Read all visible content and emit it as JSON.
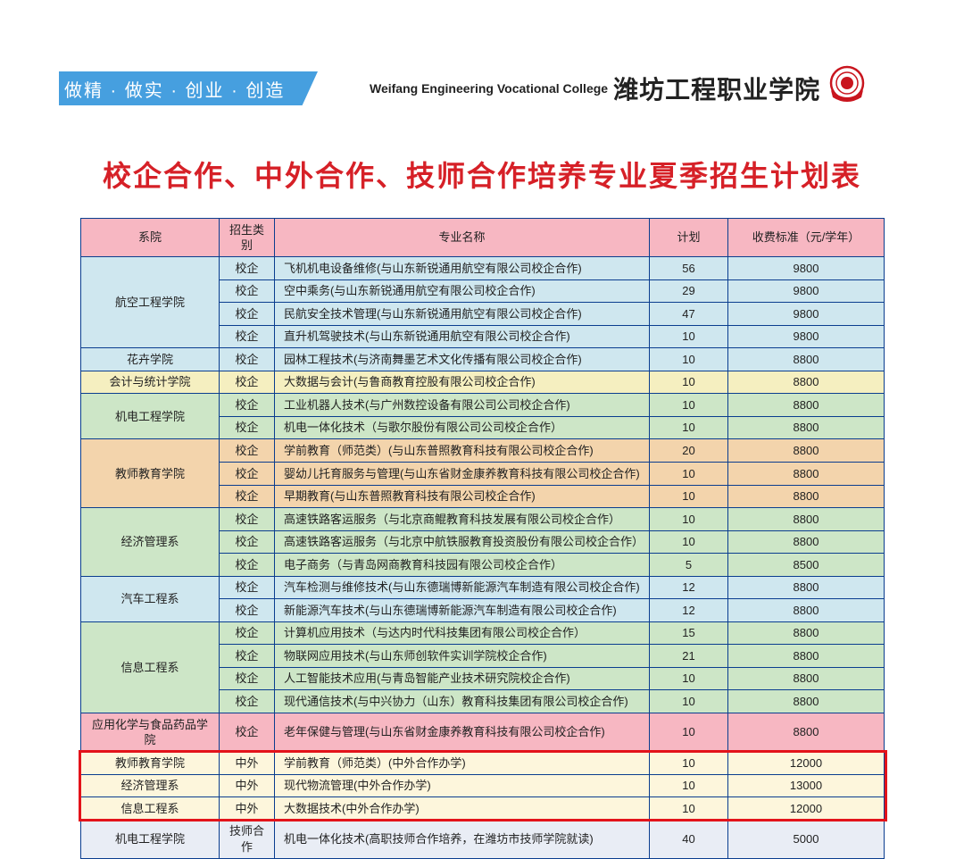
{
  "header": {
    "slogan": "做精 · 做实 · 创业 · 创造",
    "college_en": "Weifang Engineering Vocational College",
    "college_cn": "潍坊工程职业学院"
  },
  "title": "校企合作、中外合作、技师合作培养专业夏季招生计划表",
  "colors": {
    "slogan_bg": "#469fdf",
    "title": "#d62027",
    "border": "#0a3d8f",
    "header_row_bg": "#f7b7c2",
    "highlight_border": "#e3131a"
  },
  "dept_colors": {
    "航空工程学院": "#cfe7ef",
    "花卉学院": "#cfe7ef",
    "会计与统计学院": "#f5efc0",
    "机电工程学院": "#cde6c7",
    "教师教育学院": "#f3d4ac",
    "经济管理系": "#cde6c7",
    "汽车工程系": "#cfe7ef",
    "信息工程系": "#cde6c7",
    "应用化学与食品药品学院": "#f7b7c2",
    "教师教育学院2": "#fdf6dc",
    "经济管理系2": "#fdf6dc",
    "信息工程系2": "#fdf6dc",
    "机电工程学院2": "#e9edf5"
  },
  "columns": [
    "系院",
    "招生类别",
    "专业名称",
    "计划",
    "收费标准（元/学年）"
  ],
  "rows": [
    {
      "dept": "航空工程学院",
      "dept_rowspan": 4,
      "type": "校企",
      "major": "飞机机电设备维修(与山东新锐通用航空有限公司校企合作)",
      "plan": 56,
      "fee": 9800,
      "bg": "#cfe7ef"
    },
    {
      "type": "校企",
      "major": "空中乘务(与山东新锐通用航空有限公司校企合作)",
      "plan": 29,
      "fee": 9800,
      "bg": "#cfe7ef"
    },
    {
      "type": "校企",
      "major": "民航安全技术管理(与山东新锐通用航空有限公司校企合作)",
      "plan": 47,
      "fee": 9800,
      "bg": "#cfe7ef"
    },
    {
      "type": "校企",
      "major": "直升机驾驶技术(与山东新锐通用航空有限公司校企合作)",
      "plan": 10,
      "fee": 9800,
      "bg": "#cfe7ef"
    },
    {
      "dept": "花卉学院",
      "dept_rowspan": 1,
      "type": "校企",
      "major": "园林工程技术(与济南舞墨艺术文化传播有限公司校企合作)",
      "plan": 10,
      "fee": 8800,
      "bg": "#cfe7ef"
    },
    {
      "dept": "会计与统计学院",
      "dept_rowspan": 1,
      "type": "校企",
      "major": "大数据与会计(与鲁商教育控股有限公司校企合作)",
      "plan": 10,
      "fee": 8800,
      "bg": "#f5efc0"
    },
    {
      "dept": "机电工程学院",
      "dept_rowspan": 2,
      "type": "校企",
      "major": "工业机器人技术(与广州数控设备有限公司公司校企合作)",
      "plan": 10,
      "fee": 8800,
      "bg": "#cde6c7"
    },
    {
      "type": "校企",
      "major": "机电一体化技术（与歌尔股份有限公司公司校企合作）",
      "plan": 10,
      "fee": 8800,
      "bg": "#cde6c7"
    },
    {
      "dept": "教师教育学院",
      "dept_rowspan": 3,
      "type": "校企",
      "major": "学前教育（师范类）(与山东普照教育科技有限公司校企合作)",
      "plan": 20,
      "fee": 8800,
      "bg": "#f3d4ac"
    },
    {
      "type": "校企",
      "major": "婴幼儿托育服务与管理(与山东省财金康养教育科技有限公司校企合作)",
      "plan": 10,
      "fee": 8800,
      "bg": "#f3d4ac"
    },
    {
      "type": "校企",
      "major": "早期教育(与山东普照教育科技有限公司校企合作)",
      "plan": 10,
      "fee": 8800,
      "bg": "#f3d4ac"
    },
    {
      "dept": "经济管理系",
      "dept_rowspan": 3,
      "type": "校企",
      "major": "高速铁路客运服务（与北京商鲲教育科技发展有限公司校企合作）",
      "plan": 10,
      "fee": 8800,
      "bg": "#cde6c7"
    },
    {
      "type": "校企",
      "major": "高速铁路客运服务（与北京中航铁服教育投资股份有限公司校企合作）",
      "plan": 10,
      "fee": 8800,
      "bg": "#cde6c7"
    },
    {
      "type": "校企",
      "major": "电子商务（与青岛网商教育科技园有限公司校企合作）",
      "plan": 5,
      "fee": 8500,
      "bg": "#cde6c7"
    },
    {
      "dept": "汽车工程系",
      "dept_rowspan": 2,
      "type": "校企",
      "major": "汽车检测与维修技术(与山东德瑞博新能源汽车制造有限公司校企合作)",
      "plan": 12,
      "fee": 8800,
      "bg": "#cfe7ef"
    },
    {
      "type": "校企",
      "major": "新能源汽车技术(与山东德瑞博新能源汽车制造有限公司校企合作)",
      "plan": 12,
      "fee": 8800,
      "bg": "#cfe7ef"
    },
    {
      "dept": "信息工程系",
      "dept_rowspan": 4,
      "type": "校企",
      "major": "计算机应用技术（与达内时代科技集团有限公司校企合作）",
      "plan": 15,
      "fee": 8800,
      "bg": "#cde6c7"
    },
    {
      "type": "校企",
      "major": "物联网应用技术(与山东师创软件实训学院校企合作)",
      "plan": 21,
      "fee": 8800,
      "bg": "#cde6c7"
    },
    {
      "type": "校企",
      "major": "人工智能技术应用(与青岛智能产业技术研究院校企合作)",
      "plan": 10,
      "fee": 8800,
      "bg": "#cde6c7"
    },
    {
      "type": "校企",
      "major": "现代通信技术(与中兴协力（山东）教育科技集团有限公司校企合作)",
      "plan": 10,
      "fee": 8800,
      "bg": "#cde6c7"
    },
    {
      "dept": "应用化学与食品药品学院",
      "dept_rowspan": 1,
      "type": "校企",
      "major": "老年保健与管理(与山东省财金康养教育科技有限公司校企合作)",
      "plan": 10,
      "fee": 8800,
      "bg": "#f7b7c2"
    },
    {
      "dept": "教师教育学院",
      "dept_rowspan": 1,
      "type": "中外",
      "major": "学前教育（师范类）(中外合作办学)",
      "plan": 10,
      "fee": 12000,
      "bg": "#fdf6dc",
      "hl": true
    },
    {
      "dept": "经济管理系",
      "dept_rowspan": 1,
      "type": "中外",
      "major": "现代物流管理(中外合作办学)",
      "plan": 10,
      "fee": 13000,
      "bg": "#fdf6dc",
      "hl": true
    },
    {
      "dept": "信息工程系",
      "dept_rowspan": 1,
      "type": "中外",
      "major": "大数据技术(中外合作办学)",
      "plan": 10,
      "fee": 12000,
      "bg": "#fdf6dc",
      "hl": true
    },
    {
      "dept": "机电工程学院",
      "dept_rowspan": 1,
      "type": "技师合作",
      "major": "机电一体化技术(高职技师合作培养，在潍坊市技师学院就读)",
      "plan": 40,
      "fee": 5000,
      "bg": "#e9edf5"
    }
  ],
  "highlight_box": {
    "top_row": 21,
    "bottom_row": 23
  }
}
